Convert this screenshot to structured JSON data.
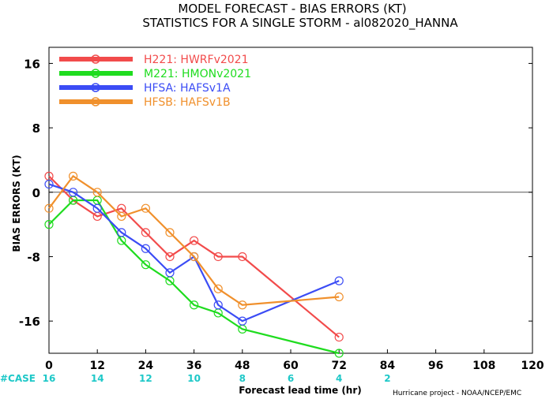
{
  "title_line1": "MODEL FORECAST - BIAS ERRORS (KT)",
  "title_line2": "STATISTICS FOR A SINGLE STORM - al082020_HANNA",
  "credit": "Hurricane project - NOAA/NCEP/EMC",
  "case_label": "#CASE",
  "cases": [
    {
      "x": 0,
      "count": "16"
    },
    {
      "x": 12,
      "count": "14"
    },
    {
      "x": 24,
      "count": "12"
    },
    {
      "x": 36,
      "count": "10"
    },
    {
      "x": 48,
      "count": "8"
    },
    {
      "x": 60,
      "count": "6"
    },
    {
      "x": 72,
      "count": "4"
    },
    {
      "x": 84,
      "count": "2"
    }
  ],
  "chart_data": {
    "type": "line",
    "title": "MODEL FORECAST - BIAS ERRORS (KT)",
    "subtitle": "STATISTICS FOR A SINGLE STORM - al082020_HANNA",
    "xlabel": "Forecast lead time (hr)",
    "ylabel": "BIAS ERRORS (KT)",
    "xlim": [
      0,
      120
    ],
    "ylim": [
      -20,
      18
    ],
    "xticks": [
      0,
      12,
      24,
      36,
      48,
      60,
      72,
      84,
      96,
      108,
      120
    ],
    "yticks": [
      -16,
      -8,
      0,
      8,
      16
    ],
    "zero_line": true,
    "legend_position": "top-left",
    "series": [
      {
        "name": "H221: HWRFv2021",
        "color": "#f24b4b",
        "x": [
          0,
          6,
          12,
          18,
          24,
          30,
          36,
          42,
          48,
          72
        ],
        "y": [
          2,
          -1,
          -3,
          -2,
          -5,
          -8,
          -6,
          -8,
          -8,
          -18
        ]
      },
      {
        "name": "M221: HMONv2021",
        "color": "#1fdc1f",
        "x": [
          0,
          6,
          12,
          18,
          24,
          30,
          36,
          42,
          48,
          72
        ],
        "y": [
          -4,
          -1,
          -1,
          -6,
          -9,
          -11,
          -14,
          -15,
          -17,
          -20
        ]
      },
      {
        "name": "HFSA: HAFSv1A",
        "color": "#3b4cf5",
        "x": [
          0,
          6,
          12,
          18,
          24,
          30,
          36,
          42,
          48,
          72
        ],
        "y": [
          1,
          0,
          -2,
          -5,
          -7,
          -10,
          -8,
          -14,
          -16,
          -11
        ]
      },
      {
        "name": "HFSB: HAFSv1B",
        "color": "#f0902c",
        "x": [
          0,
          6,
          12,
          18,
          24,
          30,
          36,
          42,
          48,
          72
        ],
        "y": [
          -2,
          2,
          0,
          -3,
          -2,
          -5,
          -8,
          -12,
          -14,
          -13
        ]
      }
    ]
  }
}
